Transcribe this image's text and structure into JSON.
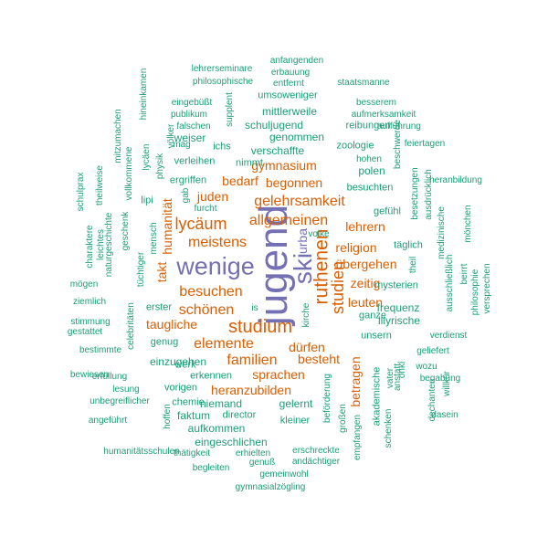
{
  "colors": {
    "purple": "#7570b3",
    "orange": "#d95f02",
    "teal": "#1b9e77"
  },
  "words": [
    {
      "text": "jugend",
      "color": "purple"
    },
    {
      "text": "wenige",
      "color": "purple"
    },
    {
      "text": "ski",
      "color": "purple"
    },
    {
      "text": "urba",
      "color": "purple"
    },
    {
      "text": "studium",
      "color": "orange"
    },
    {
      "text": "ruthenen",
      "color": "orange"
    },
    {
      "text": "studien",
      "color": "orange"
    },
    {
      "text": "besuchen",
      "color": "orange"
    },
    {
      "text": "meistens",
      "color": "orange"
    },
    {
      "text": "allgemeinen",
      "color": "orange"
    },
    {
      "text": "gelehrsamkeit",
      "color": "orange"
    },
    {
      "text": "lycäum",
      "color": "orange"
    },
    {
      "text": "schönen",
      "color": "orange"
    },
    {
      "text": "elemente",
      "color": "orange"
    },
    {
      "text": "familien",
      "color": "orange"
    },
    {
      "text": "humanität",
      "color": "orange"
    },
    {
      "text": "gymnasium",
      "color": "orange"
    },
    {
      "text": "begonnen",
      "color": "orange"
    },
    {
      "text": "bedarf",
      "color": "orange"
    },
    {
      "text": "juden",
      "color": "orange"
    },
    {
      "text": "lehrern",
      "color": "orange"
    },
    {
      "text": "religion",
      "color": "orange"
    },
    {
      "text": "übergehen",
      "color": "orange"
    },
    {
      "text": "zeitig",
      "color": "orange"
    },
    {
      "text": "leuten",
      "color": "orange"
    },
    {
      "text": "taugliche",
      "color": "orange"
    },
    {
      "text": "dürfen",
      "color": "orange"
    },
    {
      "text": "besteht",
      "color": "orange"
    },
    {
      "text": "sprachen",
      "color": "orange"
    },
    {
      "text": "heranzubilden",
      "color": "orange"
    },
    {
      "text": "betragen",
      "color": "orange"
    },
    {
      "text": "takt",
      "color": "orange"
    },
    {
      "text": "anfangenden",
      "color": "teal"
    },
    {
      "text": "erbauung",
      "color": "teal"
    },
    {
      "text": "lehrerseminare",
      "color": "teal"
    },
    {
      "text": "philosophische",
      "color": "teal"
    },
    {
      "text": "entfernt",
      "color": "teal"
    },
    {
      "text": "staatsmanne",
      "color": "teal"
    },
    {
      "text": "hineinkamen",
      "color": "teal"
    },
    {
      "text": "eingebüßt",
      "color": "teal"
    },
    {
      "text": "umsoweniger",
      "color": "teal"
    },
    {
      "text": "besserem",
      "color": "teal"
    },
    {
      "text": "publikum",
      "color": "teal"
    },
    {
      "text": "supplent",
      "color": "teal"
    },
    {
      "text": "mittlerweile",
      "color": "teal"
    },
    {
      "text": "aufmerksamkeit",
      "color": "teal"
    },
    {
      "text": "falschen",
      "color": "teal"
    },
    {
      "text": "schuljugend",
      "color": "teal"
    },
    {
      "text": "aufführung",
      "color": "teal"
    },
    {
      "text": "mitzumachen",
      "color": "teal"
    },
    {
      "text": "völker",
      "color": "teal"
    },
    {
      "text": "weiser",
      "color": "teal"
    },
    {
      "text": "genommen",
      "color": "teal"
    },
    {
      "text": "reibungen",
      "color": "teal"
    },
    {
      "text": "mag",
      "color": "teal"
    },
    {
      "text": "ichs",
      "color": "teal"
    },
    {
      "text": "zoologie",
      "color": "teal"
    },
    {
      "text": "beschwerde",
      "color": "teal"
    },
    {
      "text": "feiertagen",
      "color": "teal"
    },
    {
      "text": "lycäen",
      "color": "teal"
    },
    {
      "text": "physik",
      "color": "teal"
    },
    {
      "text": "verschaffte",
      "color": "teal"
    },
    {
      "text": "hohen",
      "color": "teal"
    },
    {
      "text": "verleihen",
      "color": "teal"
    },
    {
      "text": "nimmt",
      "color": "teal"
    },
    {
      "text": "polen",
      "color": "teal"
    },
    {
      "text": "schulprax",
      "color": "teal"
    },
    {
      "text": "theilweise",
      "color": "teal"
    },
    {
      "text": "vollkommene",
      "color": "teal"
    },
    {
      "text": "ergriffen",
      "color": "teal"
    },
    {
      "text": "besuchten",
      "color": "teal"
    },
    {
      "text": "besetzungen",
      "color": "teal"
    },
    {
      "text": "heranbildung",
      "color": "teal"
    },
    {
      "text": "gab",
      "color": "teal"
    },
    {
      "text": "ausdrücklich",
      "color": "teal"
    },
    {
      "text": "furcht",
      "color": "teal"
    },
    {
      "text": "lipi",
      "color": "teal"
    },
    {
      "text": "gefühl",
      "color": "teal"
    },
    {
      "text": "naturgeschichte",
      "color": "teal"
    },
    {
      "text": "geschenk",
      "color": "teal"
    },
    {
      "text": "mensch",
      "color": "teal"
    },
    {
      "text": "charaktere",
      "color": "teal"
    },
    {
      "text": "leichtes",
      "color": "teal"
    },
    {
      "text": "volke",
      "color": "teal"
    },
    {
      "text": "täglich",
      "color": "teal"
    },
    {
      "text": "medizinische",
      "color": "teal"
    },
    {
      "text": "mönchen",
      "color": "teal"
    },
    {
      "text": "tüchtiger",
      "color": "teal"
    },
    {
      "text": "theil",
      "color": "teal"
    },
    {
      "text": "beirrt",
      "color": "teal"
    },
    {
      "text": "ausschließlich",
      "color": "teal"
    },
    {
      "text": "philosophie",
      "color": "teal"
    },
    {
      "text": "versprechen",
      "color": "teal"
    },
    {
      "text": "mögen",
      "color": "teal"
    },
    {
      "text": "ziemlich",
      "color": "teal"
    },
    {
      "text": "mysterien",
      "color": "teal"
    },
    {
      "text": "erster",
      "color": "teal"
    },
    {
      "text": "is",
      "color": "teal"
    },
    {
      "text": "frequenz",
      "color": "teal"
    },
    {
      "text": "celebritäten",
      "color": "teal"
    },
    {
      "text": "kirche",
      "color": "teal"
    },
    {
      "text": "ganze",
      "color": "teal"
    },
    {
      "text": "illyrische",
      "color": "teal"
    },
    {
      "text": "stimmung",
      "color": "teal"
    },
    {
      "text": "gestattet",
      "color": "teal"
    },
    {
      "text": "genug",
      "color": "teal"
    },
    {
      "text": "unsern",
      "color": "teal"
    },
    {
      "text": "verdienst",
      "color": "teal"
    },
    {
      "text": "bestimmte",
      "color": "teal"
    },
    {
      "text": "geliefert",
      "color": "teal"
    },
    {
      "text": "einzugehen",
      "color": "teal"
    },
    {
      "text": "werk",
      "color": "teal"
    },
    {
      "text": "bewiesen",
      "color": "teal"
    },
    {
      "text": "erfüllung",
      "color": "teal"
    },
    {
      "text": "erkennen",
      "color": "teal"
    },
    {
      "text": "wozu",
      "color": "teal"
    },
    {
      "text": "begabung",
      "color": "teal"
    },
    {
      "text": "vorigen",
      "color": "teal"
    },
    {
      "text": "lesung",
      "color": "teal"
    },
    {
      "text": "unbegreiflicher",
      "color": "teal"
    },
    {
      "text": "chemie",
      "color": "teal"
    },
    {
      "text": "niemand",
      "color": "teal"
    },
    {
      "text": "gelernt",
      "color": "teal"
    },
    {
      "text": "akademische",
      "color": "teal"
    },
    {
      "text": "anstatt",
      "color": "teal"
    },
    {
      "text": "vater",
      "color": "teal"
    },
    {
      "text": "onkl",
      "color": "teal"
    },
    {
      "text": "willkür",
      "color": "teal"
    },
    {
      "text": "dechanten",
      "color": "teal"
    },
    {
      "text": "faktum",
      "color": "teal"
    },
    {
      "text": "director",
      "color": "teal"
    },
    {
      "text": "angeführt",
      "color": "teal"
    },
    {
      "text": "hoffen",
      "color": "teal"
    },
    {
      "text": "aufkommen",
      "color": "teal"
    },
    {
      "text": "kleiner",
      "color": "teal"
    },
    {
      "text": "beförderung",
      "color": "teal"
    },
    {
      "text": "großen",
      "color": "teal"
    },
    {
      "text": "dasein",
      "color": "teal"
    },
    {
      "text": "eingeschlichen",
      "color": "teal"
    },
    {
      "text": "schenken",
      "color": "teal"
    },
    {
      "text": "empfangen",
      "color": "teal"
    },
    {
      "text": "humanitätsschulen",
      "color": "teal"
    },
    {
      "text": "thätigkeit",
      "color": "teal"
    },
    {
      "text": "erhielten",
      "color": "teal"
    },
    {
      "text": "erschreckte",
      "color": "teal"
    },
    {
      "text": "genuß",
      "color": "teal"
    },
    {
      "text": "andächtiger",
      "color": "teal"
    },
    {
      "text": "begleiten",
      "color": "teal"
    },
    {
      "text": "gemeinwohl",
      "color": "teal"
    },
    {
      "text": "gymnasialzögling",
      "color": "teal"
    }
  ]
}
